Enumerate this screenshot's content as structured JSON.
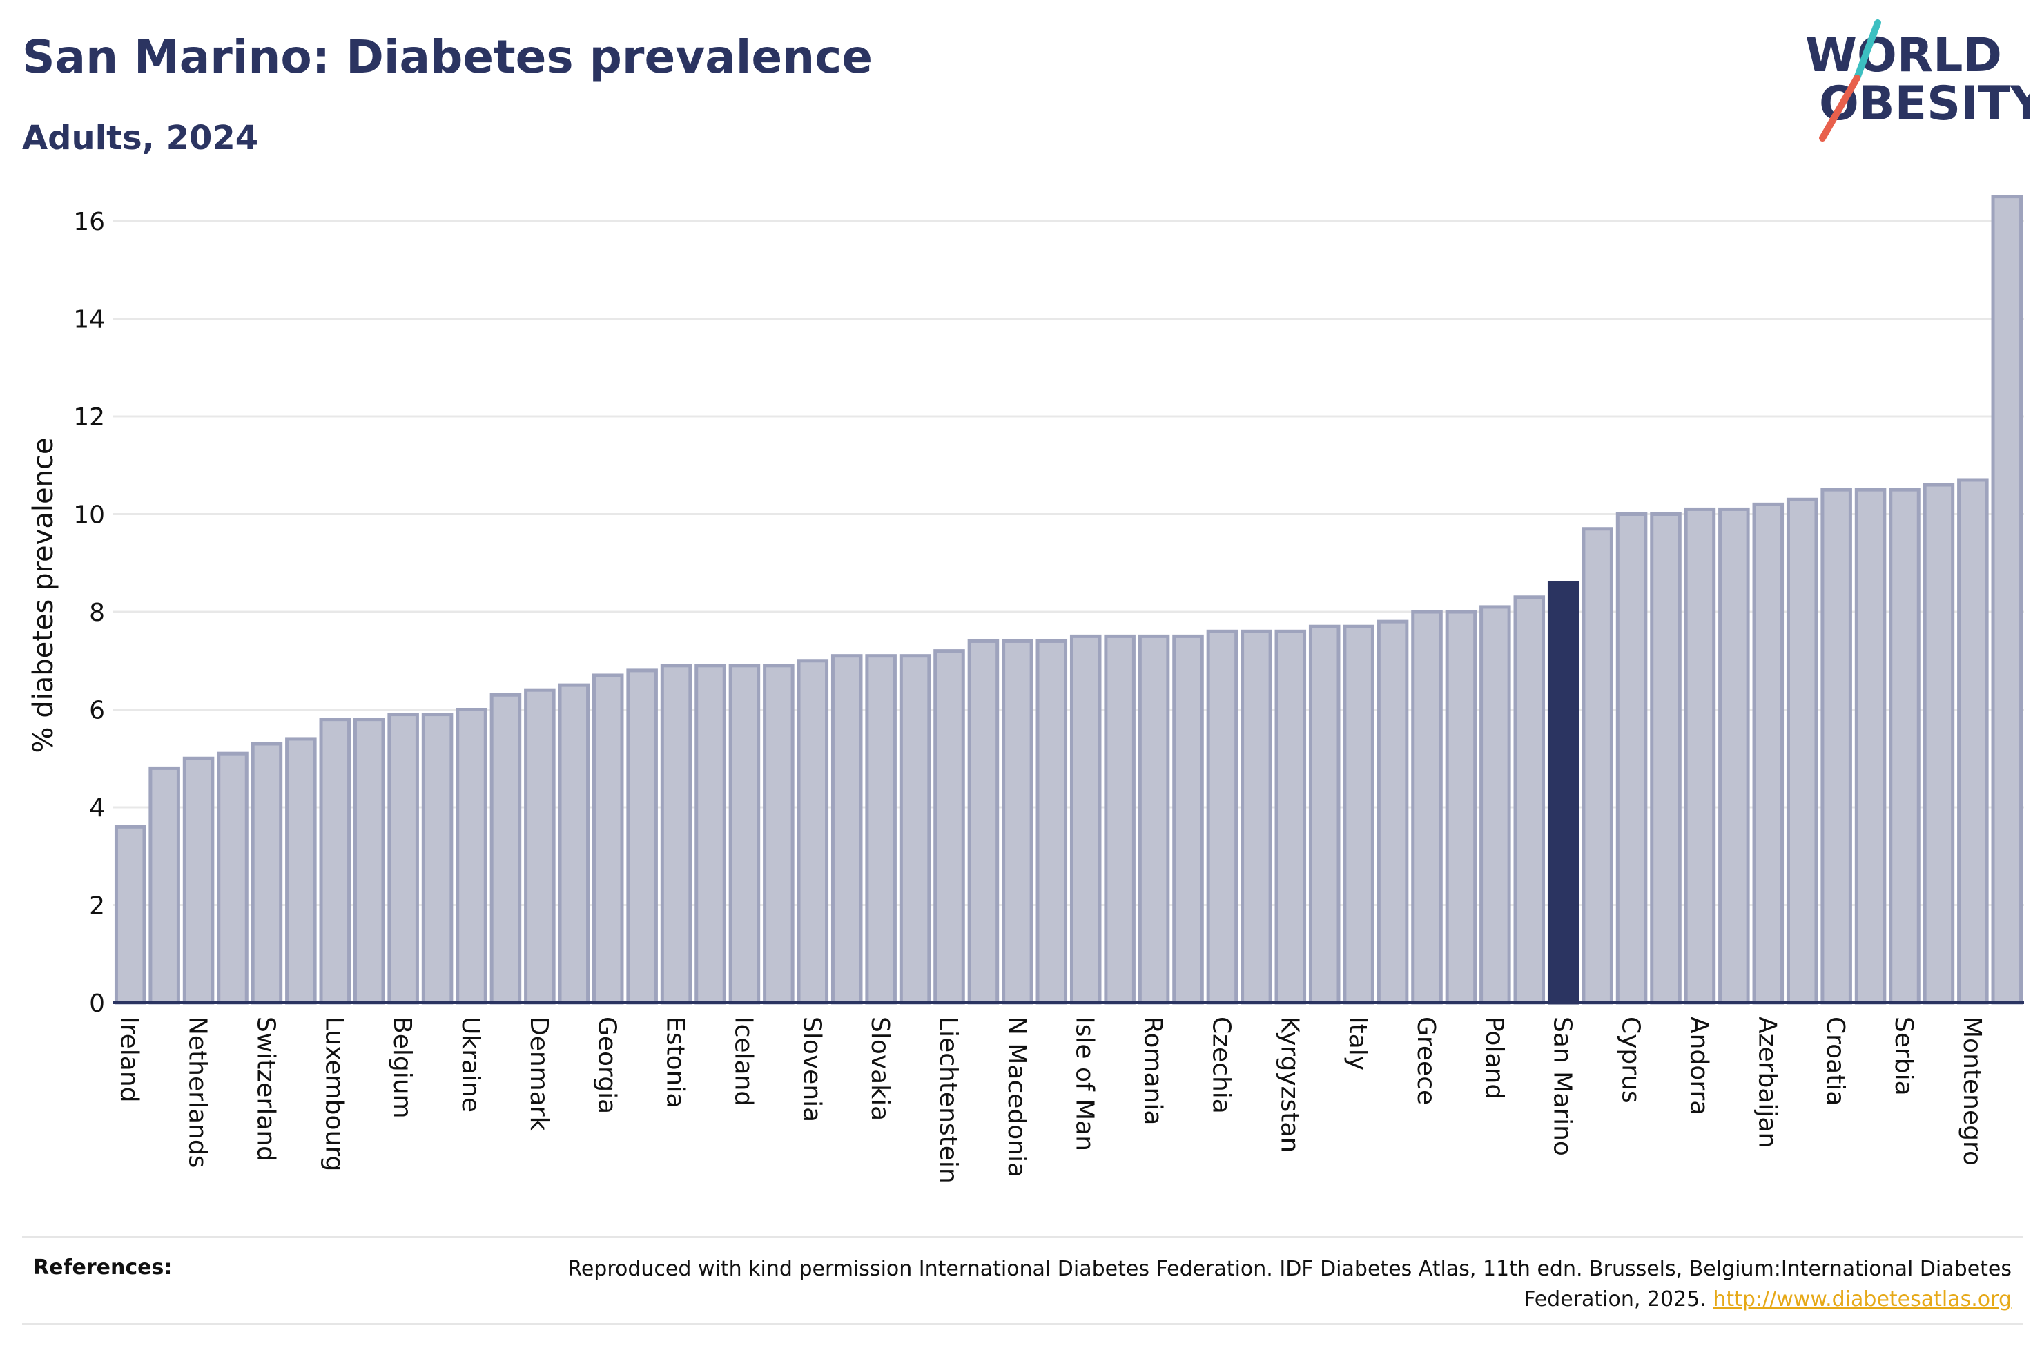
{
  "header": {
    "title": "San Marino: Diabetes prevalence",
    "subtitle": "Adults, 2024"
  },
  "logo": {
    "line1": "WORLD",
    "line2": "OBESITY",
    "accent_teal": "#3cbfc1",
    "accent_red": "#e8604c",
    "text_color": "#2b3461"
  },
  "chart_data": {
    "type": "bar",
    "title": "San Marino: Diabetes prevalence",
    "subtitle": "Adults, 2024",
    "ylabel": "% diabetes prevalence",
    "xlabel": "",
    "ylim": [
      0,
      17
    ],
    "yticks": [
      0,
      2,
      4,
      6,
      8,
      10,
      12,
      14,
      16
    ],
    "grid": true,
    "highlight": "San Marino",
    "colors": {
      "bar": "#bfc2d1",
      "bar_edge": "#9ea3bd",
      "highlight": "#2b3461",
      "grid": "#e8e8e8",
      "axis": "#2b3461"
    },
    "categories": [
      "Ireland",
      "",
      "Netherlands",
      "",
      "Switzerland",
      "",
      "Luxembourg",
      "",
      "Belgium",
      "",
      "Ukraine",
      "",
      "Denmark",
      "",
      "Georgia",
      "",
      "Estonia",
      "",
      "Iceland",
      "",
      "Slovenia",
      "",
      "Slovakia",
      "",
      "Liechtenstein",
      "",
      "N Macedonia",
      "",
      "Isle of Man",
      "",
      "Romania",
      "",
      "Czechia",
      "",
      "Kyrgyzstan",
      "",
      "Italy",
      "",
      "Greece",
      "",
      "Poland",
      "",
      "San Marino",
      "",
      "Cyprus",
      "",
      "Andorra",
      "",
      "Azerbaijan",
      "",
      "Croatia",
      "",
      "Serbia",
      "",
      "Montenegro",
      ""
    ],
    "values": [
      3.6,
      4.8,
      5.0,
      5.1,
      5.3,
      5.4,
      5.8,
      5.8,
      5.9,
      5.9,
      6.0,
      6.3,
      6.4,
      6.5,
      6.7,
      6.8,
      6.9,
      6.9,
      6.9,
      6.9,
      7.0,
      7.1,
      7.1,
      7.1,
      7.2,
      7.4,
      7.4,
      7.4,
      7.5,
      7.5,
      7.5,
      7.5,
      7.6,
      7.6,
      7.6,
      7.7,
      7.7,
      7.8,
      8.0,
      8.0,
      8.1,
      8.3,
      8.6,
      9.7,
      10.0,
      10.0,
      10.1,
      10.1,
      10.2,
      10.3,
      10.5,
      10.5,
      10.5,
      10.6,
      10.7,
      16.5
    ]
  },
  "references": {
    "label": "References:",
    "text": "Reproduced with kind permission International Diabetes Federation. IDF Diabetes Atlas, 11th edn. Brussels, Belgium:International Diabetes Federation, 2025.",
    "link": "http://www.diabetesatlas.org"
  }
}
